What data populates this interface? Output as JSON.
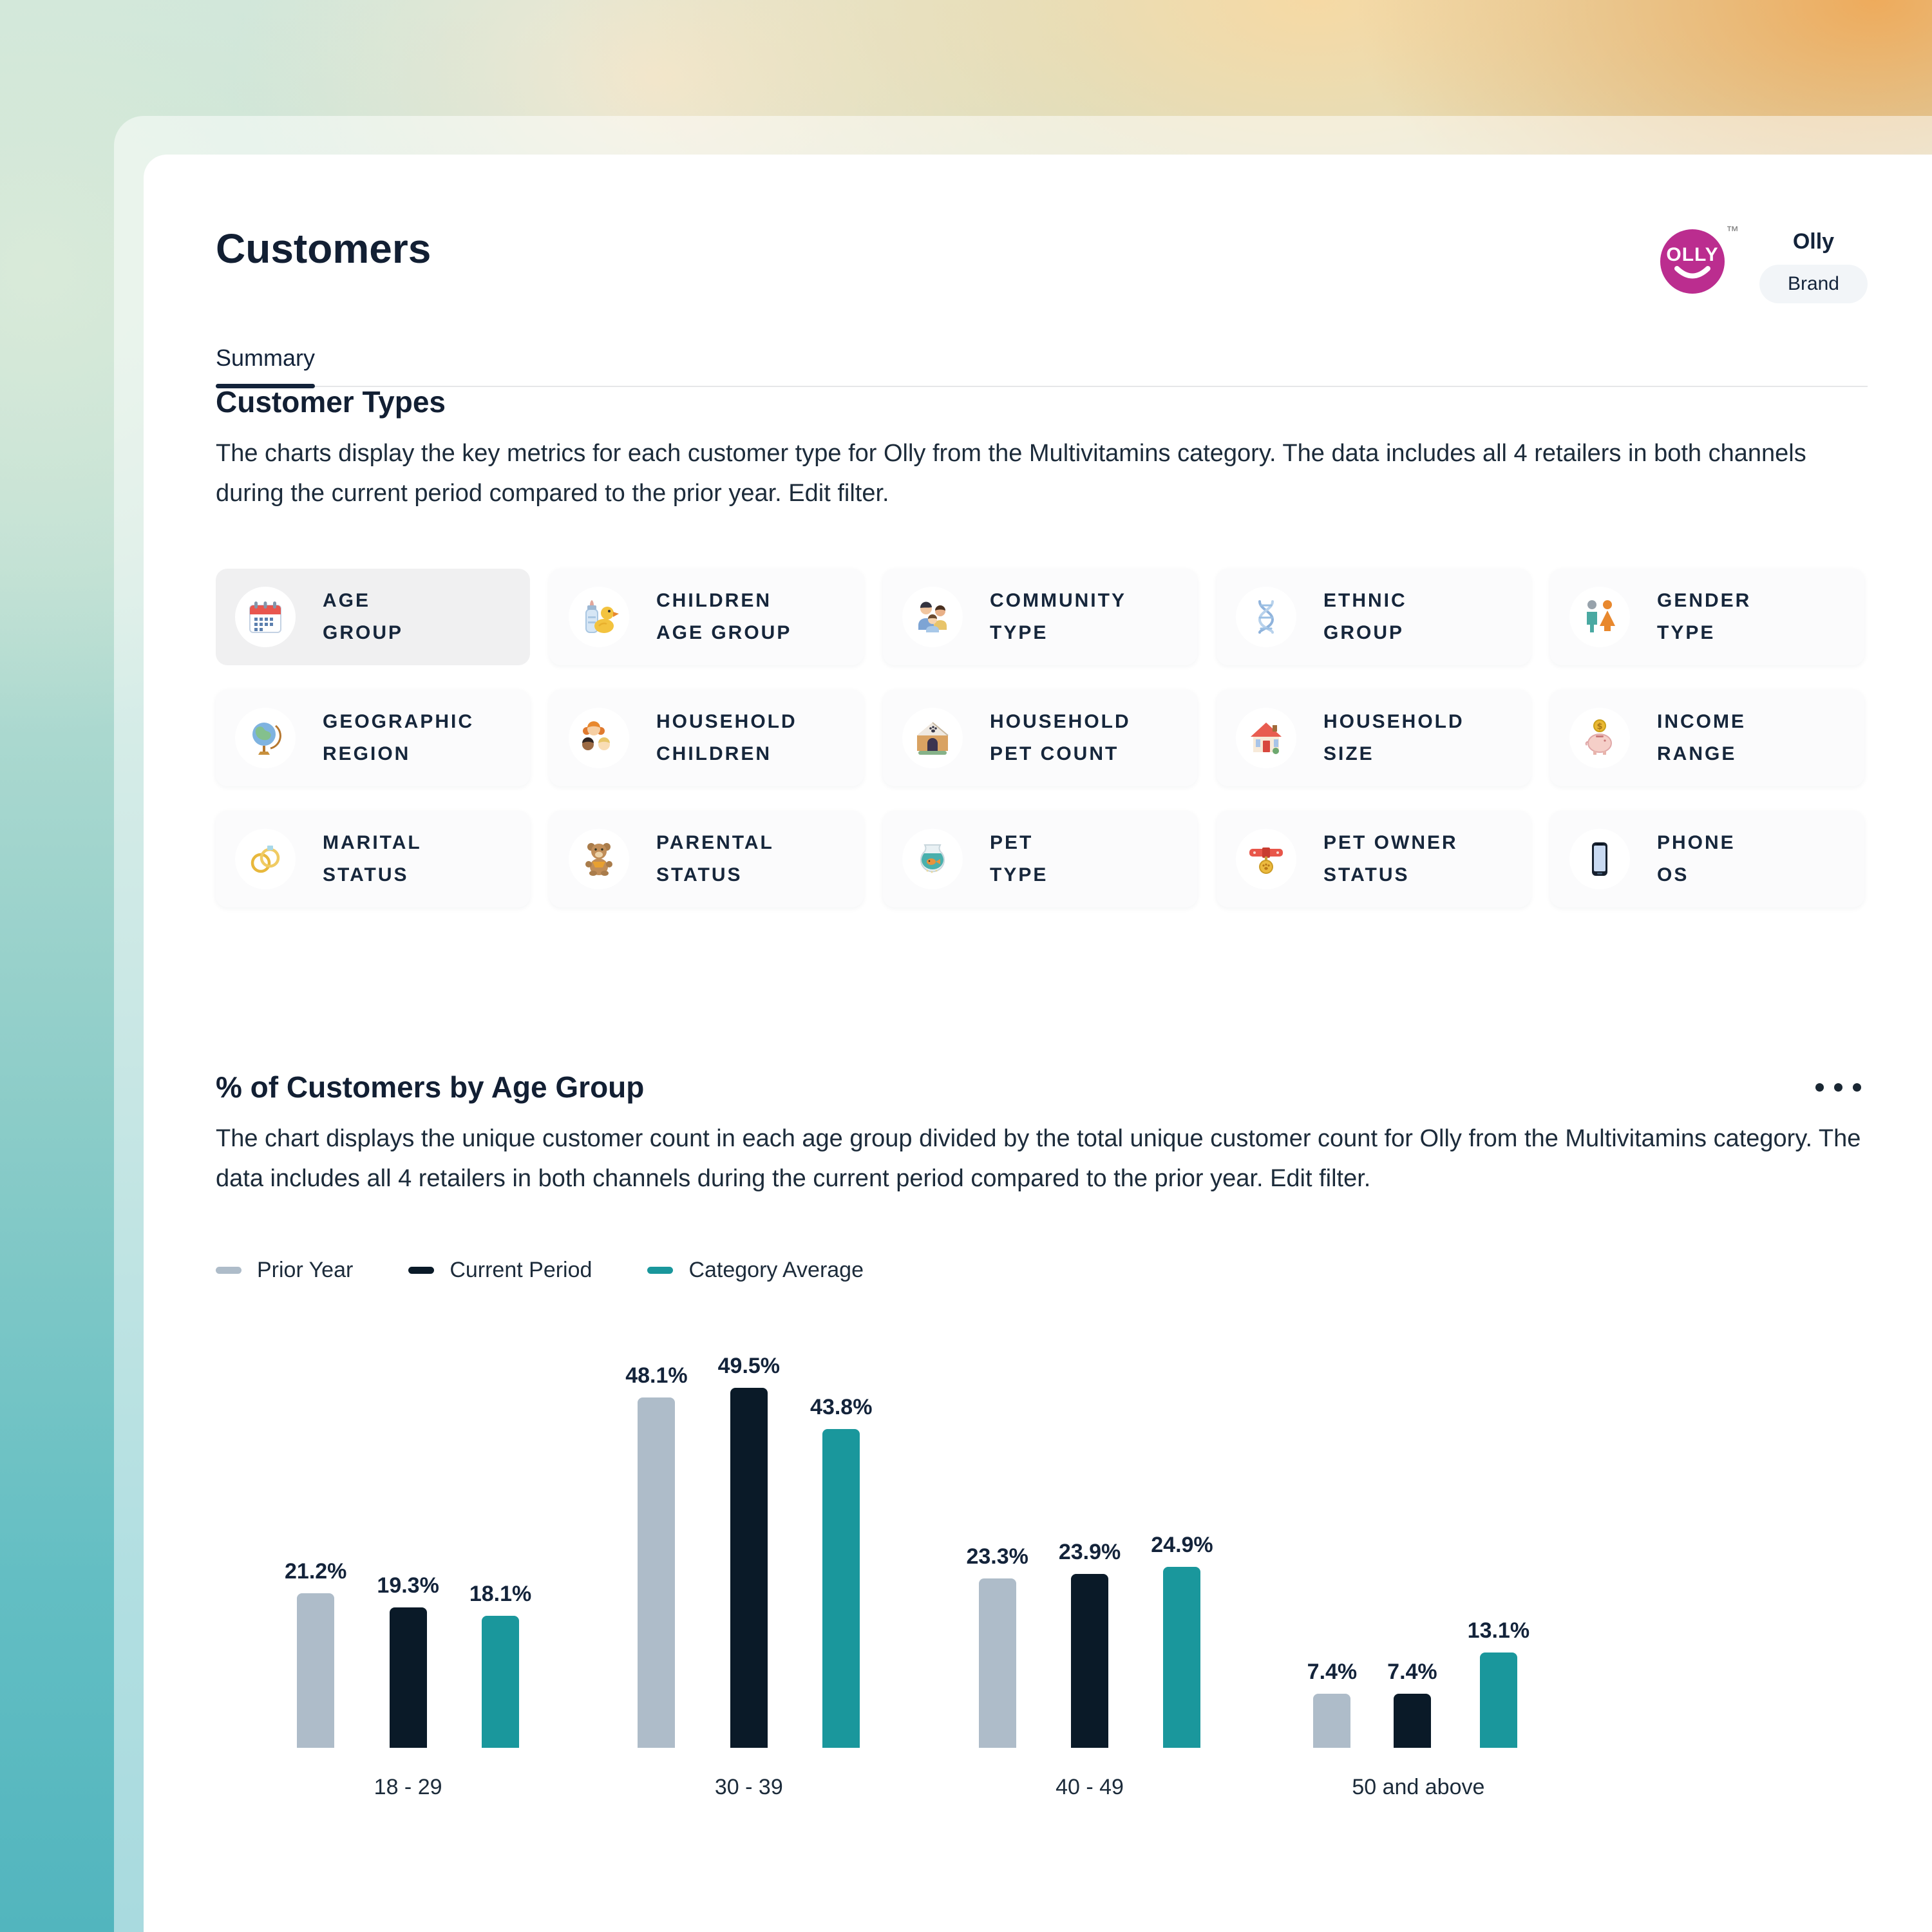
{
  "header": {
    "title": "Customers",
    "tab": "Summary",
    "logo_text": "OLLY",
    "logo_tm": "™",
    "logo_color": "#bb2d8f",
    "brand_name": "Olly",
    "brand_badge": "Brand"
  },
  "customer_types": {
    "heading": "Customer Types",
    "desc": {
      "part1": "The charts display the key metrics for each customer type for Olly from the ",
      "link1": "Multivitamins",
      "part2": " category. The data includes all 4 retailers in both channels during the current period compared to the prior year. ",
      "link2": "Edit filter",
      "part3": "."
    },
    "cards": [
      {
        "id": "age-group",
        "lines": [
          "AGE",
          "GROUP"
        ],
        "icon": "calendar-icon",
        "selected": true
      },
      {
        "id": "children-age-group",
        "lines": [
          "CHILDREN",
          "AGE GROUP"
        ],
        "icon": "baby-bottle-duck-icon",
        "selected": false
      },
      {
        "id": "community-type",
        "lines": [
          "COMMUNITY",
          "TYPE"
        ],
        "icon": "family-icon",
        "selected": false
      },
      {
        "id": "ethnic-group",
        "lines": [
          "ETHNIC",
          "GROUP"
        ],
        "icon": "dna-icon",
        "selected": false
      },
      {
        "id": "gender-type",
        "lines": [
          "GENDER",
          "TYPE"
        ],
        "icon": "gender-figures-icon",
        "selected": false
      },
      {
        "id": "geographic-region",
        "lines": [
          "GEOGRAPHIC",
          "REGION"
        ],
        "icon": "globe-icon",
        "selected": false
      },
      {
        "id": "household-children",
        "lines": [
          "HOUSEHOLD",
          "CHILDREN"
        ],
        "icon": "children-faces-icon",
        "selected": false
      },
      {
        "id": "household-pet-count",
        "lines": [
          "HOUSEHOLD",
          "PET COUNT"
        ],
        "icon": "doghouse-icon",
        "selected": false
      },
      {
        "id": "household-size",
        "lines": [
          "HOUSEHOLD",
          "SIZE"
        ],
        "icon": "house-icon",
        "selected": false
      },
      {
        "id": "income-range",
        "lines": [
          "INCOME",
          "RANGE"
        ],
        "icon": "piggy-bank-icon",
        "selected": false
      },
      {
        "id": "marital-status",
        "lines": [
          "MARITAL",
          "STATUS"
        ],
        "icon": "rings-icon",
        "selected": false
      },
      {
        "id": "parental-status",
        "lines": [
          "PARENTAL",
          "STATUS"
        ],
        "icon": "teddy-bear-icon",
        "selected": false
      },
      {
        "id": "pet-type",
        "lines": [
          "PET",
          "TYPE"
        ],
        "icon": "fishbowl-icon",
        "selected": false
      },
      {
        "id": "pet-owner-status",
        "lines": [
          "PET OWNER",
          "STATUS"
        ],
        "icon": "pet-collar-icon",
        "selected": false
      },
      {
        "id": "phone-os",
        "lines": [
          "PHONE",
          "OS"
        ],
        "icon": "smartphone-icon",
        "selected": false
      }
    ]
  },
  "age_group_section": {
    "heading": "% of Customers by Age Group",
    "desc": {
      "part1": "The chart displays the unique customer count in each age group divided by the total unique customer count for Olly from the ",
      "link1": "Multivitamins",
      "part2": " category. The data includes all 4 retailers in both channels during the current period compared to the prior year. ",
      "link2": "Edit filter",
      "part3": "."
    }
  },
  "chart_data": {
    "type": "bar",
    "title": "% of Customers by Age Group",
    "categories": [
      "18 - 29",
      "30 - 39",
      "40 - 49",
      "50 and above"
    ],
    "series": [
      {
        "name": "Prior Year",
        "color": "#aebcc9",
        "values": [
          21.2,
          48.1,
          23.3,
          7.4
        ]
      },
      {
        "name": "Current Period",
        "color": "#0a1a28",
        "values": [
          19.3,
          49.5,
          23.9,
          7.4
        ]
      },
      {
        "name": "Category Average",
        "color": "#1a979c",
        "values": [
          18.1,
          43.8,
          24.9,
          13.1
        ]
      }
    ],
    "value_suffix": "%",
    "ylim": [
      0,
      55
    ],
    "legend_position": "top",
    "grid": false,
    "data_labels": true
  }
}
